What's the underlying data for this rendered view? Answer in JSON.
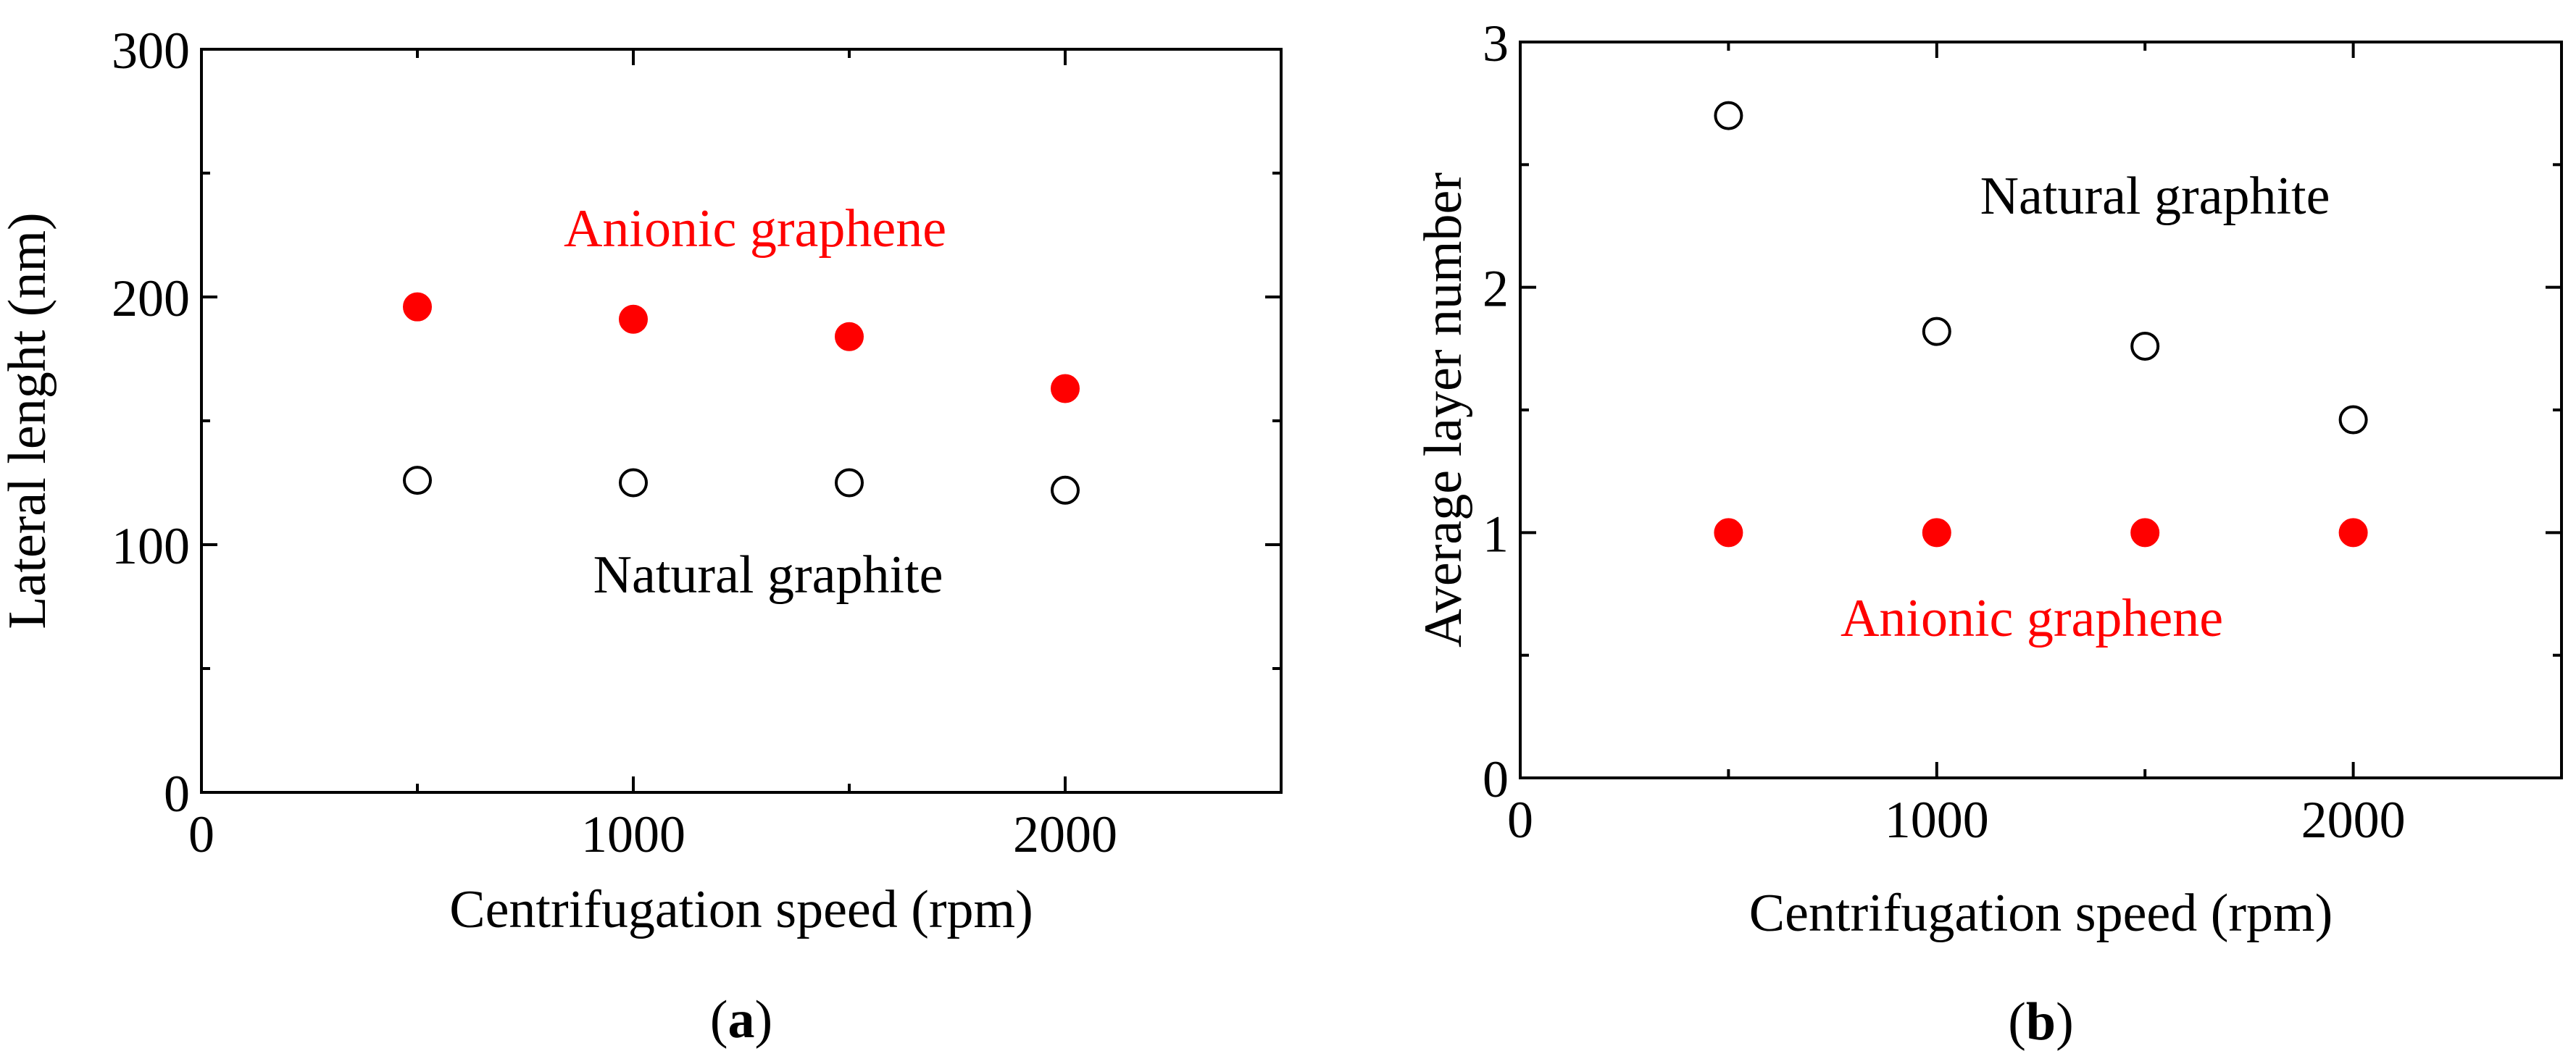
{
  "chart_data": [
    {
      "panel": "a",
      "type": "scatter",
      "title": "",
      "xlabel": "Centrifugation speed (rpm)",
      "ylabel": "Lateral lenght (nm)",
      "xlim": [
        0,
        2500
      ],
      "ylim": [
        0,
        300
      ],
      "xticks": [
        0,
        1000,
        2000
      ],
      "yticks": [
        0,
        100,
        200,
        300
      ],
      "panel_label": {
        "open": "(",
        "letter": "a",
        "close": ")"
      },
      "series": [
        {
          "name": "Anionic graphene",
          "marker": "filled-circle",
          "color": "#ff0000",
          "x": [
            500,
            1000,
            1500,
            2000
          ],
          "y": [
            196,
            191,
            184,
            163
          ]
        },
        {
          "name": "Natural graphite",
          "marker": "open-circle",
          "color": "#000000",
          "x": [
            500,
            1000,
            1500,
            2000
          ],
          "y": [
            126,
            125,
            125,
            122
          ]
        }
      ]
    },
    {
      "panel": "b",
      "type": "scatter",
      "title": "",
      "xlabel": "Centrifugation speed (rpm)",
      "ylabel": "Average layer number",
      "xlim": [
        0,
        2500
      ],
      "ylim": [
        0,
        3
      ],
      "xticks": [
        0,
        1000,
        2000
      ],
      "yticks": [
        0,
        1,
        2,
        3
      ],
      "panel_label": {
        "open": "(",
        "letter": "b",
        "close": ")"
      },
      "series": [
        {
          "name": "Natural graphite",
          "marker": "open-circle",
          "color": "#000000",
          "x": [
            500,
            1000,
            1500,
            2000
          ],
          "y": [
            2.7,
            1.82,
            1.76,
            1.46
          ]
        },
        {
          "name": "Anionic graphene",
          "marker": "filled-circle",
          "color": "#ff0000",
          "x": [
            500,
            1000,
            1500,
            2000
          ],
          "y": [
            1.0,
            1.0,
            1.0,
            1.0
          ]
        }
      ]
    }
  ]
}
